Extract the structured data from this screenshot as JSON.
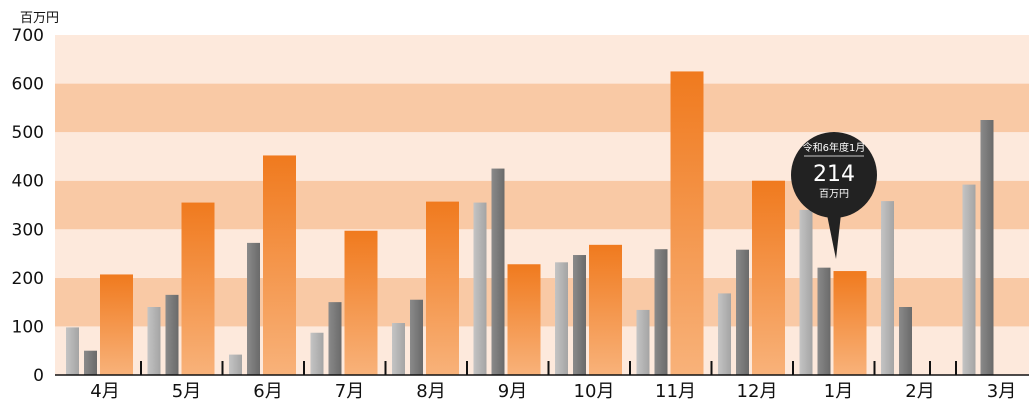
{
  "chart_data": {
    "type": "bar",
    "unit_label": "百万円",
    "categories": [
      "4月",
      "5月",
      "6月",
      "7月",
      "8月",
      "9月",
      "10月",
      "11月",
      "12月",
      "1月",
      "2月",
      "3月"
    ],
    "series": [
      {
        "values": [
          98,
          140,
          42,
          87,
          107,
          355,
          232,
          134,
          168,
          340,
          358,
          392
        ]
      },
      {
        "values": [
          50,
          165,
          272,
          150,
          155,
          425,
          247,
          259,
          258,
          221,
          140,
          525
        ]
      },
      {
        "values": [
          207,
          355,
          452,
          297,
          357,
          228,
          268,
          625,
          400,
          214,
          null,
          null
        ]
      }
    ],
    "colors": {
      "series0": "#b3b3b3",
      "series1": "#7a7a7a",
      "series2": "#f07820",
      "band_light": "#fde9dc",
      "band_dark": "#f9c9a5"
    },
    "ylim": [
      0,
      700
    ],
    "yticks": [
      0,
      100,
      200,
      300,
      400,
      500,
      600,
      700
    ],
    "callout": {
      "period": "令和6年度1月",
      "value": "214",
      "unit": "百万円",
      "category_index": 9
    }
  }
}
